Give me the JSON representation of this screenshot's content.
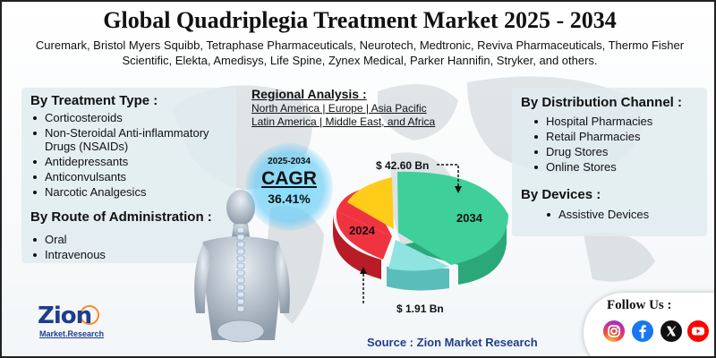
{
  "title": "Global Quadriplegia Treatment Market 2025 - 2034",
  "subtitle": "Curemark, Bristol Myers Squibb, Tetraphase Pharmaceuticals, Neurotech, Medtronic, Reviva Pharmaceuticals, Thermo Fisher Scientific, Elekta, Amedisys, Life Spine, Zynex Medical, Parker Hannifin, Stryker, and others.",
  "treatment_type": {
    "title": "By Treatment Type :",
    "items": [
      "Corticosteroids",
      "Non-Steroidal Anti-inflammatory Drugs (NSAIDs)",
      "Antidepressants",
      "Anticonvulsants",
      "Narcotic Analgesics"
    ]
  },
  "route": {
    "title": "By Route of Administration :",
    "items": [
      "Oral",
      "Intravenous"
    ]
  },
  "regional": {
    "title": "Regional Analysis :",
    "line1": "North America | Europe | Asia Pacific",
    "line2": "Latin America | Middle East, and Africa"
  },
  "cagr": {
    "years": "2025-2034",
    "label": "CAGR",
    "value": "36.41%"
  },
  "pie": {
    "label_2024": "2024",
    "label_2034": "2034",
    "value_2034": "$ 42.60 Bn",
    "value_2024": "$ 1.91 Bn",
    "colors": [
      "#3ecf9a",
      "#f0343f",
      "#ffcc1a",
      "#8fe3e0"
    ]
  },
  "distribution": {
    "title": "By Distribution Channel :",
    "items": [
      "Hospital Pharmacies",
      "Retail Pharmacies",
      "Drug Stores",
      "Online Stores"
    ]
  },
  "devices": {
    "title": "By Devices :",
    "items": [
      "Assistive Devices"
    ]
  },
  "source": "Source : Zion Market Research",
  "logo": {
    "brand": "Zion",
    "sub": "Market.Research"
  },
  "follow": {
    "title": "Follow Us :",
    "icons": [
      "instagram-icon",
      "facebook-icon",
      "x-icon",
      "youtube-icon"
    ]
  }
}
